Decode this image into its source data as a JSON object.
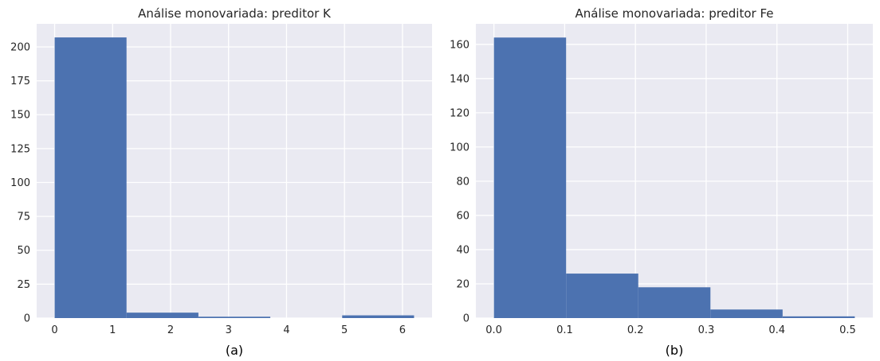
{
  "chart_data": [
    {
      "type": "bar",
      "title": "Análise monovariada: preditor K",
      "caption": "(a)",
      "xlabel": "",
      "ylabel": "",
      "bins": [
        {
          "x0": 0.0,
          "x1": 1.24,
          "value": 207
        },
        {
          "x0": 1.24,
          "x1": 2.48,
          "value": 4
        },
        {
          "x0": 2.48,
          "x1": 3.72,
          "value": 1
        },
        {
          "x0": 3.72,
          "x1": 4.96,
          "value": 0
        },
        {
          "x0": 4.96,
          "x1": 6.2,
          "value": 2
        }
      ],
      "xlim": [
        -0.31,
        6.51
      ],
      "ylim": [
        0,
        217
      ],
      "xticks": [
        0,
        1,
        2,
        3,
        4,
        5,
        6
      ],
      "yticks": [
        0,
        25,
        50,
        75,
        100,
        125,
        150,
        175,
        200
      ],
      "bar_color": "#4c72b0",
      "grid": true
    },
    {
      "type": "bar",
      "title": "Análise monovariada: preditor Fe",
      "caption": "(b)",
      "xlabel": "",
      "ylabel": "",
      "bins": [
        {
          "x0": 0.0,
          "x1": 0.102,
          "value": 164
        },
        {
          "x0": 0.102,
          "x1": 0.204,
          "value": 26
        },
        {
          "x0": 0.204,
          "x1": 0.306,
          "value": 18
        },
        {
          "x0": 0.306,
          "x1": 0.408,
          "value": 5
        },
        {
          "x0": 0.408,
          "x1": 0.51,
          "value": 1
        }
      ],
      "xlim": [
        -0.0255,
        0.5355
      ],
      "ylim": [
        0,
        172
      ],
      "xticks": [
        "0.0",
        "0.1",
        "0.2",
        "0.3",
        "0.4",
        "0.5"
      ],
      "yticks": [
        0,
        20,
        40,
        60,
        80,
        100,
        120,
        140,
        160
      ],
      "bar_color": "#4c72b0",
      "grid": true
    }
  ]
}
